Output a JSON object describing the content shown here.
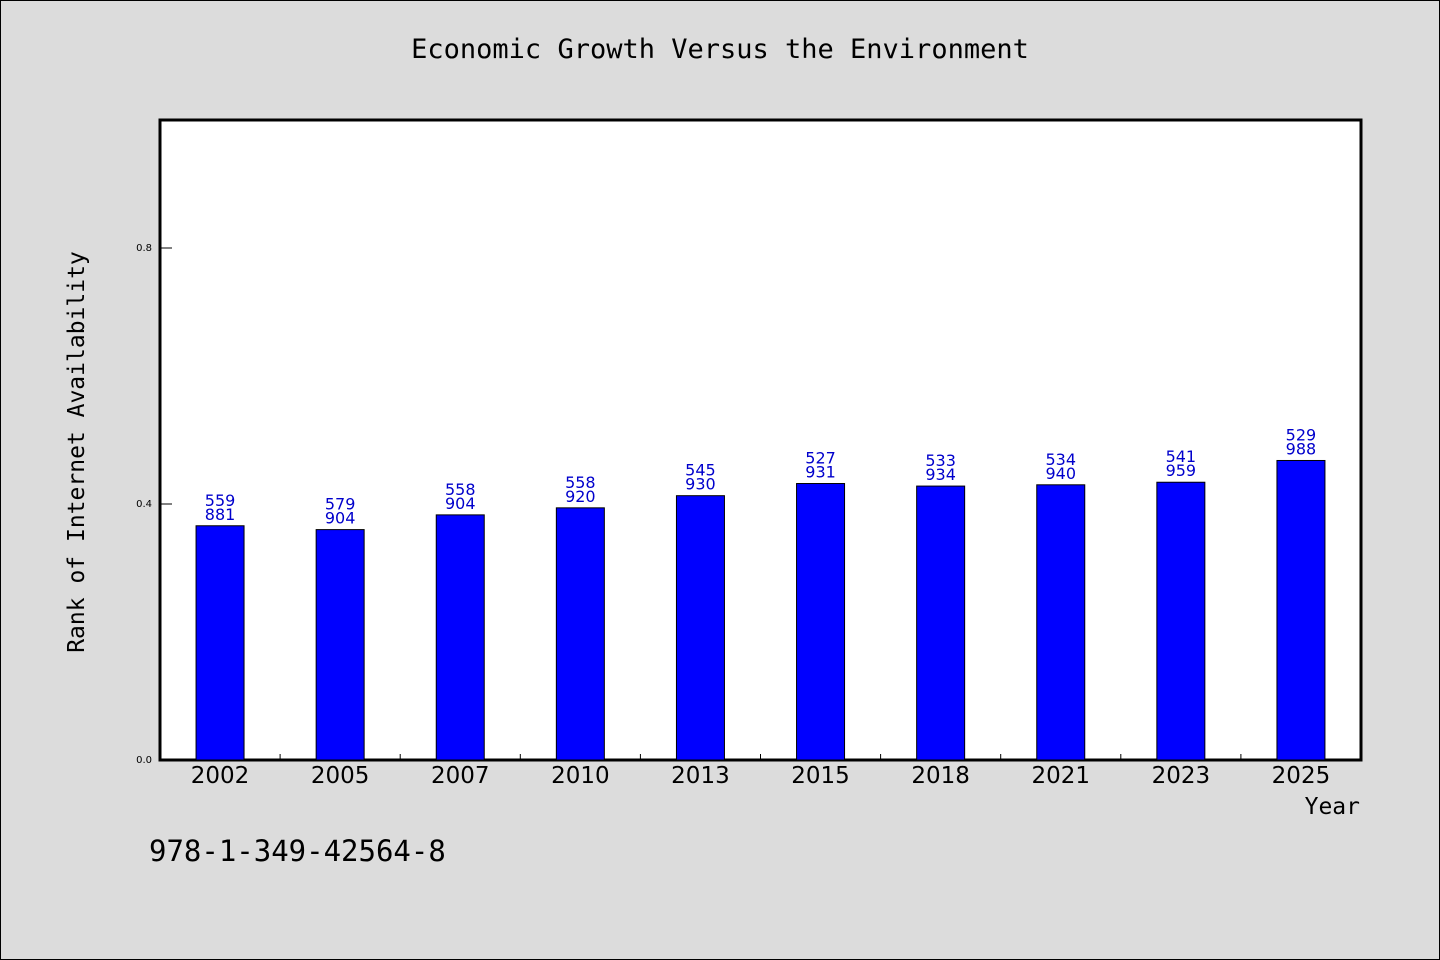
{
  "chart_data": {
    "type": "bar",
    "title": "Economic Growth Versus the Environment",
    "xlabel": "Year",
    "ylabel": "Rank of Internet Availability",
    "categories": [
      "2002",
      "2005",
      "2007",
      "2010",
      "2013",
      "2015",
      "2018",
      "2021",
      "2023",
      "2025"
    ],
    "values": [
      0.366,
      0.36,
      0.383,
      0.394,
      0.413,
      0.432,
      0.428,
      0.43,
      0.434,
      0.468
    ],
    "bar_labels_top": [
      "559",
      "579",
      "558",
      "558",
      "545",
      "527",
      "533",
      "534",
      "541",
      "529"
    ],
    "bar_labels_bottom": [
      "881",
      "904",
      "904",
      "920",
      "930",
      "931",
      "934",
      "940",
      "959",
      "988"
    ],
    "yticks": [
      "0.0",
      "0.4",
      "0.8"
    ],
    "ytick_values": [
      0.0,
      0.4,
      0.8
    ],
    "ylim": [
      0,
      1.0
    ],
    "bar_color": "#0000ff",
    "label_color": "#0000cc",
    "grid": false,
    "legend": "none"
  },
  "footer": {
    "isbn": "978-1-349-42564-8"
  }
}
